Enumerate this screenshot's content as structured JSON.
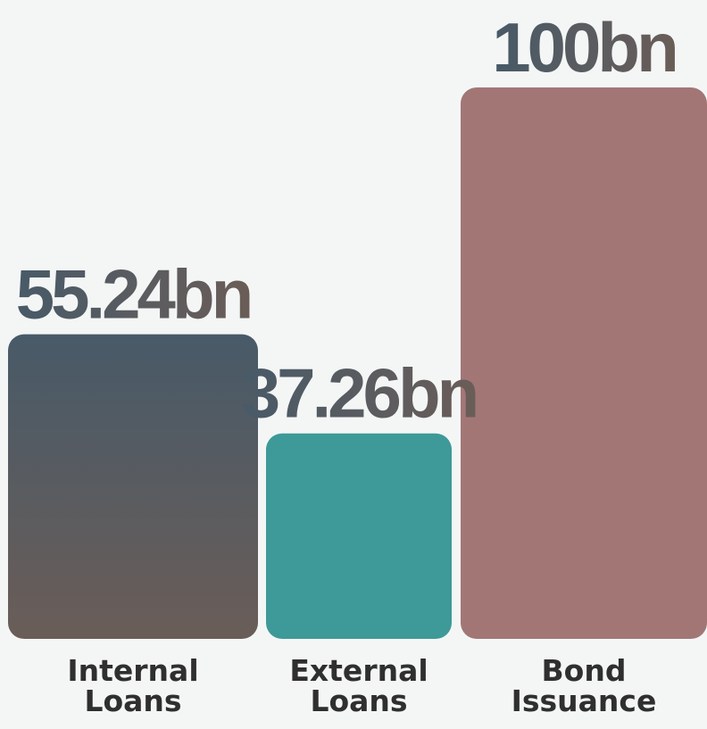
{
  "chart_data": {
    "type": "bar",
    "categories": [
      "Internal Loans",
      "External Loans",
      "Bond Issuance"
    ],
    "category_lines": [
      [
        "Internal",
        "Loans"
      ],
      [
        "External",
        "Loans"
      ],
      [
        "Bond",
        "Issuance"
      ]
    ],
    "values": [
      55.24,
      37.26,
      100
    ],
    "value_labels": [
      "55.24bn",
      "37.26bn",
      "100bn"
    ],
    "unit": "bn",
    "ylim": [
      0,
      100
    ],
    "grid": false,
    "legend": "none",
    "title": "",
    "xlabel": "",
    "ylabel": ""
  },
  "colors": {
    "background": "#f4f6f6",
    "bar_internal_top": "#485a68",
    "bar_internal_bottom": "#6a5d58",
    "bar_external": "#3d9a98",
    "bar_bond": "#a37676",
    "label_top": "#485a68",
    "label_bottom": "#6a5d58",
    "category_text": "#2f2f2f"
  }
}
